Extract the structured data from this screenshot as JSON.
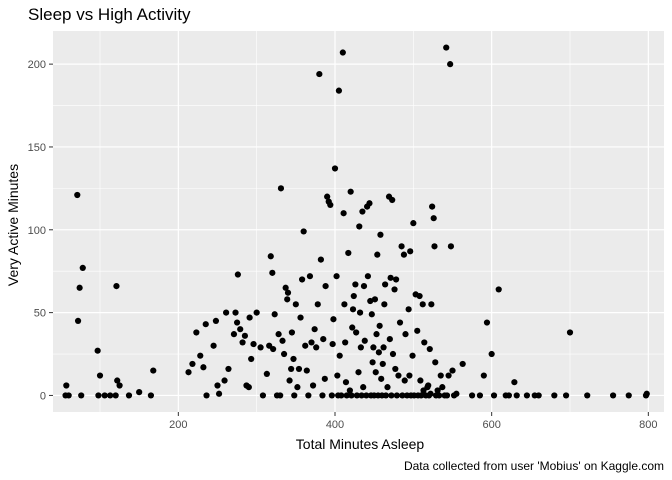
{
  "chart_data": {
    "type": "scatter",
    "title": "Sleep vs High Activity",
    "xlabel": "Total Minutes Asleep",
    "ylabel": "Very Active Minutes",
    "caption": "Data collected from user 'Mobius' on Kaggle.com",
    "xlim": [
      40,
      820
    ],
    "ylim": [
      -10,
      220
    ],
    "x_ticks": [
      200,
      400,
      600,
      800
    ],
    "y_ticks": [
      0,
      50,
      100,
      150,
      200
    ],
    "x_minor": [
      100,
      300,
      500,
      700
    ],
    "y_minor": [
      25,
      75,
      125,
      175
    ],
    "grid": true,
    "panel_background": "#ebebeb",
    "grid_color": "#ffffff",
    "point_color": "#000000",
    "points": [
      [
        71,
        121
      ],
      [
        72,
        45
      ],
      [
        74,
        65
      ],
      [
        78,
        77
      ],
      [
        57,
        6
      ],
      [
        56,
        0
      ],
      [
        60,
        0
      ],
      [
        76,
        0
      ],
      [
        97,
        27
      ],
      [
        100,
        12
      ],
      [
        98,
        0
      ],
      [
        106,
        0
      ],
      [
        113,
        0
      ],
      [
        120,
        0
      ],
      [
        121,
        66
      ],
      [
        122,
        9
      ],
      [
        125,
        6
      ],
      [
        137,
        0
      ],
      [
        150,
        2
      ],
      [
        165,
        0
      ],
      [
        168,
        15
      ],
      [
        213,
        14
      ],
      [
        218,
        19
      ],
      [
        223,
        38
      ],
      [
        228,
        24
      ],
      [
        232,
        17
      ],
      [
        235,
        43
      ],
      [
        236,
        0
      ],
      [
        245,
        30
      ],
      [
        248,
        45
      ],
      [
        250,
        6
      ],
      [
        252,
        1
      ],
      [
        259,
        9
      ],
      [
        261,
        50
      ],
      [
        264,
        16
      ],
      [
        271,
        37
      ],
      [
        273,
        50
      ],
      [
        276,
        73
      ],
      [
        275,
        44
      ],
      [
        279,
        40
      ],
      [
        282,
        32
      ],
      [
        285,
        36
      ],
      [
        287,
        6
      ],
      [
        290,
        5
      ],
      [
        291,
        47
      ],
      [
        293,
        22
      ],
      [
        296,
        31
      ],
      [
        300,
        50
      ],
      [
        305,
        29
      ],
      [
        308,
        0
      ],
      [
        313,
        13
      ],
      [
        316,
        30
      ],
      [
        318,
        84
      ],
      [
        320,
        74
      ],
      [
        321,
        28
      ],
      [
        323,
        49
      ],
      [
        326,
        0
      ],
      [
        328,
        37
      ],
      [
        330,
        0
      ],
      [
        331,
        125
      ],
      [
        333,
        33
      ],
      [
        335,
        25
      ],
      [
        337,
        65
      ],
      [
        339,
        58
      ],
      [
        340,
        62
      ],
      [
        342,
        9
      ],
      [
        344,
        16
      ],
      [
        345,
        38
      ],
      [
        347,
        22
      ],
      [
        348,
        0
      ],
      [
        350,
        55
      ],
      [
        352,
        5
      ],
      [
        354,
        16
      ],
      [
        356,
        47
      ],
      [
        358,
        70
      ],
      [
        360,
        99
      ],
      [
        362,
        30
      ],
      [
        364,
        15
      ],
      [
        366,
        0
      ],
      [
        368,
        72
      ],
      [
        370,
        32
      ],
      [
        372,
        6
      ],
      [
        374,
        40
      ],
      [
        376,
        29
      ],
      [
        378,
        55
      ],
      [
        380,
        194
      ],
      [
        382,
        82
      ],
      [
        384,
        0
      ],
      [
        385,
        34
      ],
      [
        387,
        10
      ],
      [
        388,
        66
      ],
      [
        390,
        120
      ],
      [
        392,
        117
      ],
      [
        394,
        115
      ],
      [
        396,
        0
      ],
      [
        397,
        31
      ],
      [
        398,
        46
      ],
      [
        400,
        137
      ],
      [
        402,
        72
      ],
      [
        403,
        12
      ],
      [
        404,
        0
      ],
      [
        405,
        184
      ],
      [
        406,
        24
      ],
      [
        408,
        0
      ],
      [
        410,
        207
      ],
      [
        411,
        110
      ],
      [
        412,
        55
      ],
      [
        413,
        32
      ],
      [
        414,
        8
      ],
      [
        415,
        0
      ],
      [
        417,
        86
      ],
      [
        419,
        3
      ],
      [
        420,
        123
      ],
      [
        421,
        0
      ],
      [
        422,
        41
      ],
      [
        423,
        52
      ],
      [
        424,
        60
      ],
      [
        426,
        67
      ],
      [
        427,
        38
      ],
      [
        428,
        0
      ],
      [
        430,
        14
      ],
      [
        431,
        102
      ],
      [
        432,
        50
      ],
      [
        433,
        29
      ],
      [
        434,
        0
      ],
      [
        435,
        111
      ],
      [
        436,
        5
      ],
      [
        437,
        66
      ],
      [
        438,
        33
      ],
      [
        440,
        0
      ],
      [
        441,
        114
      ],
      [
        442,
        72
      ],
      [
        444,
        116
      ],
      [
        445,
        57
      ],
      [
        446,
        0
      ],
      [
        447,
        49
      ],
      [
        448,
        20
      ],
      [
        449,
        29
      ],
      [
        450,
        0
      ],
      [
        451,
        58
      ],
      [
        452,
        14
      ],
      [
        453,
        37
      ],
      [
        454,
        85
      ],
      [
        455,
        0
      ],
      [
        456,
        26
      ],
      [
        457,
        42
      ],
      [
        458,
        97
      ],
      [
        459,
        10
      ],
      [
        460,
        0
      ],
      [
        461,
        19
      ],
      [
        462,
        29
      ],
      [
        463,
        55
      ],
      [
        464,
        67
      ],
      [
        465,
        0
      ],
      [
        467,
        5
      ],
      [
        469,
        120
      ],
      [
        470,
        34
      ],
      [
        471,
        71
      ],
      [
        472,
        0
      ],
      [
        473,
        118
      ],
      [
        474,
        25
      ],
      [
        476,
        64
      ],
      [
        477,
        16
      ],
      [
        478,
        70
      ],
      [
        479,
        0
      ],
      [
        481,
        12
      ],
      [
        483,
        44
      ],
      [
        485,
        90
      ],
      [
        486,
        0
      ],
      [
        488,
        85
      ],
      [
        489,
        9
      ],
      [
        490,
        37
      ],
      [
        492,
        0
      ],
      [
        494,
        52
      ],
      [
        495,
        12
      ],
      [
        496,
        87
      ],
      [
        497,
        0
      ],
      [
        499,
        24
      ],
      [
        500,
        104
      ],
      [
        501,
        0
      ],
      [
        503,
        61
      ],
      [
        505,
        39
      ],
      [
        506,
        0
      ],
      [
        508,
        60
      ],
      [
        509,
        9
      ],
      [
        510,
        0
      ],
      [
        512,
        55
      ],
      [
        513,
        3
      ],
      [
        514,
        32
      ],
      [
        516,
        0
      ],
      [
        518,
        5
      ],
      [
        519,
        6
      ],
      [
        520,
        0
      ],
      [
        521,
        28
      ],
      [
        522,
        1
      ],
      [
        523,
        55
      ],
      [
        524,
        114
      ],
      [
        526,
        107
      ],
      [
        527,
        90
      ],
      [
        528,
        20
      ],
      [
        529,
        0
      ],
      [
        531,
        3
      ],
      [
        533,
        0
      ],
      [
        535,
        12
      ],
      [
        537,
        5
      ],
      [
        540,
        0
      ],
      [
        542,
        210
      ],
      [
        543,
        0
      ],
      [
        545,
        12
      ],
      [
        547,
        200
      ],
      [
        548,
        90
      ],
      [
        550,
        15
      ],
      [
        552,
        0
      ],
      [
        555,
        1
      ],
      [
        563,
        19
      ],
      [
        575,
        0
      ],
      [
        585,
        0
      ],
      [
        590,
        12
      ],
      [
        594,
        44
      ],
      [
        600,
        25
      ],
      [
        603,
        0
      ],
      [
        609,
        64
      ],
      [
        618,
        0
      ],
      [
        622,
        0
      ],
      [
        629,
        8
      ],
      [
        632,
        0
      ],
      [
        645,
        0
      ],
      [
        655,
        0
      ],
      [
        660,
        0
      ],
      [
        680,
        0
      ],
      [
        695,
        0
      ],
      [
        700,
        38
      ],
      [
        722,
        0
      ],
      [
        755,
        0
      ],
      [
        775,
        0
      ],
      [
        797,
        0
      ],
      [
        798,
        1
      ]
    ]
  }
}
